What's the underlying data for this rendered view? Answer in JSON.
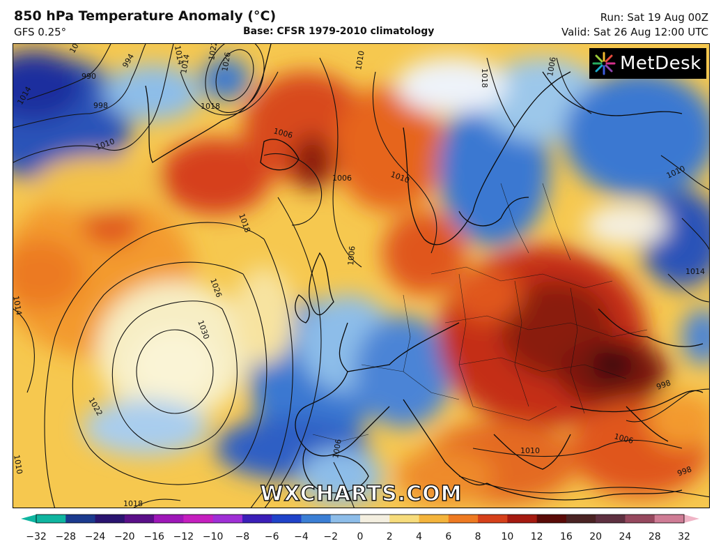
{
  "header": {
    "title": "850 hPa Temperature Anomaly (°C)",
    "model": "GFS 0.25°",
    "base": "Base: CFSR 1979-2010 climatology",
    "run": "Run: Sat 19 Aug 00Z",
    "valid": "Valid: Sat 26 Aug 12:00 UTC"
  },
  "logo": {
    "text": "MetDesk",
    "icon": "metdesk-burst-icon"
  },
  "watermark": "WXCHARTS.COM",
  "colors": {
    "deep_blue": "#1e2f9e",
    "blue": "#3b78d1",
    "light_blue": "#9cc7ea",
    "pale": "#f7f2d0",
    "yellow": "#f6d260",
    "orange": "#f39a2e",
    "red_orange": "#e0561c",
    "dark_red": "#a51a0e",
    "maroon": "#5a0b08"
  },
  "isobar_labels": [
    {
      "id": "iso-1030",
      "text": "1030"
    },
    {
      "id": "iso-1026a",
      "text": "1026"
    },
    {
      "id": "iso-1022",
      "text": "1022"
    },
    {
      "id": "iso-1018a",
      "text": "1018"
    },
    {
      "id": "iso-1014a",
      "text": "1014"
    },
    {
      "id": "iso-1010a",
      "text": "1010"
    },
    {
      "id": "iso-1006a",
      "text": "1006"
    },
    {
      "id": "iso-998a",
      "text": "998"
    },
    {
      "id": "iso-994",
      "text": "994"
    },
    {
      "id": "iso-990",
      "text": "990"
    },
    {
      "id": "iso-1026b",
      "text": "1026"
    },
    {
      "id": "iso-1022b",
      "text": "1022"
    },
    {
      "id": "iso-1018b",
      "text": "1018"
    },
    {
      "id": "iso-1014b",
      "text": "1014"
    },
    {
      "id": "iso-1010b",
      "text": "1010"
    },
    {
      "id": "iso-1006b",
      "text": "1006"
    },
    {
      "id": "iso-1010c",
      "text": "1010"
    },
    {
      "id": "iso-1006c",
      "text": "1006"
    },
    {
      "id": "iso-1018c",
      "text": "1018"
    },
    {
      "id": "iso-1006d",
      "text": "1006"
    },
    {
      "id": "iso-1010d",
      "text": "1010"
    },
    {
      "id": "iso-1006e",
      "text": "1006"
    },
    {
      "id": "iso-998b",
      "text": "998"
    },
    {
      "id": "iso-998c",
      "text": "998"
    },
    {
      "id": "iso-1014c",
      "text": "1014"
    },
    {
      "id": "iso-1010e",
      "text": "1010"
    },
    {
      "id": "iso-1006f",
      "text": "1006"
    },
    {
      "id": "iso-1018d",
      "text": "1018"
    },
    {
      "id": "iso-1014d",
      "text": "1014"
    },
    {
      "id": "iso-1006g",
      "text": "1006"
    },
    {
      "id": "iso-1010f",
      "text": "1010"
    },
    {
      "id": "iso-1014e",
      "text": "1014"
    }
  ],
  "colorbar": {
    "ticks": [
      "−32",
      "−28",
      "−24",
      "−20",
      "−16",
      "−12",
      "−10",
      "−8",
      "−6",
      "−4",
      "−2",
      "0",
      "2",
      "4",
      "6",
      "8",
      "10",
      "12",
      "16",
      "20",
      "24",
      "28",
      "32"
    ],
    "colors": [
      "#0fb5a0",
      "#1b3a8e",
      "#2a1470",
      "#5a0f88",
      "#9e17b8",
      "#c51fbf",
      "#9f2fd6",
      "#3b1fb8",
      "#2043c9",
      "#3b7fd5",
      "#8dbde9",
      "#f4efe0",
      "#f7dc7c",
      "#f4b43c",
      "#ee7a22",
      "#d6401a",
      "#a51a10",
      "#5a0b08",
      "#4a2323",
      "#5e3040",
      "#96485e",
      "#cf7c95",
      "#f0b4c6"
    ]
  }
}
